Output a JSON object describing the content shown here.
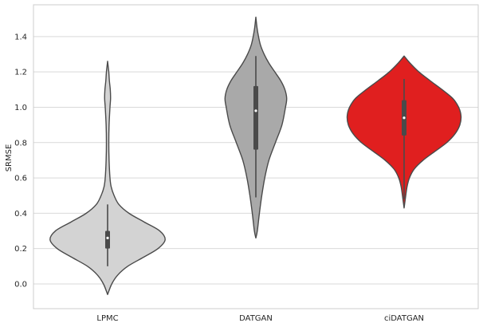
{
  "chart_data": {
    "type": "violin",
    "title": "",
    "xlabel": "",
    "ylabel": "SRMSE",
    "ylim": [
      -0.14,
      1.58
    ],
    "yticks": [
      "0.0",
      "0.2",
      "0.4",
      "0.6",
      "0.8",
      "1.0",
      "1.2",
      "1.4"
    ],
    "grid": "horizontal",
    "categories": [
      "LPMC",
      "DATGAN",
      "ciDATGAN"
    ],
    "colors": [
      "#d3d3d3",
      "#a9a9a9",
      "#e01f1f"
    ],
    "outline_color": "#4a4a4a",
    "violins": [
      {
        "name": "LPMC",
        "min": 0.1,
        "q1": 0.2,
        "median": 0.26,
        "q3": 0.3,
        "max": 0.45,
        "range": [
          -0.06,
          1.26
        ],
        "density": [
          [
            -0.06,
            0.0
          ],
          [
            0.0,
            0.07
          ],
          [
            0.05,
            0.17
          ],
          [
            0.1,
            0.34
          ],
          [
            0.15,
            0.6
          ],
          [
            0.2,
            0.85
          ],
          [
            0.25,
            0.97
          ],
          [
            0.3,
            0.88
          ],
          [
            0.35,
            0.62
          ],
          [
            0.4,
            0.36
          ],
          [
            0.45,
            0.19
          ],
          [
            0.5,
            0.11
          ],
          [
            0.55,
            0.06
          ],
          [
            0.6,
            0.04
          ],
          [
            0.7,
            0.025
          ],
          [
            0.8,
            0.02
          ],
          [
            0.9,
            0.025
          ],
          [
            1.0,
            0.04
          ],
          [
            1.05,
            0.05
          ],
          [
            1.1,
            0.045
          ],
          [
            1.15,
            0.03
          ],
          [
            1.2,
            0.02
          ],
          [
            1.26,
            0.0
          ]
        ]
      },
      {
        "name": "DATGAN",
        "min": 0.49,
        "q1": 0.76,
        "median": 0.98,
        "q3": 1.12,
        "max": 1.29,
        "range": [
          0.26,
          1.51
        ],
        "density": [
          [
            0.26,
            0.0
          ],
          [
            0.3,
            0.025
          ],
          [
            0.4,
            0.06
          ],
          [
            0.5,
            0.1
          ],
          [
            0.6,
            0.15
          ],
          [
            0.7,
            0.22
          ],
          [
            0.8,
            0.33
          ],
          [
            0.9,
            0.44
          ],
          [
            1.0,
            0.5
          ],
          [
            1.05,
            0.52
          ],
          [
            1.1,
            0.49
          ],
          [
            1.15,
            0.42
          ],
          [
            1.2,
            0.32
          ],
          [
            1.25,
            0.22
          ],
          [
            1.3,
            0.14
          ],
          [
            1.35,
            0.08
          ],
          [
            1.4,
            0.045
          ],
          [
            1.45,
            0.02
          ],
          [
            1.51,
            0.0
          ]
        ]
      },
      {
        "name": "ciDATGAN",
        "min": 0.48,
        "q1": 0.84,
        "median": 0.94,
        "q3": 1.04,
        "max": 1.16,
        "range": [
          0.43,
          1.29
        ],
        "density": [
          [
            0.43,
            0.0
          ],
          [
            0.48,
            0.02
          ],
          [
            0.55,
            0.05
          ],
          [
            0.6,
            0.09
          ],
          [
            0.65,
            0.17
          ],
          [
            0.7,
            0.32
          ],
          [
            0.75,
            0.52
          ],
          [
            0.8,
            0.72
          ],
          [
            0.85,
            0.86
          ],
          [
            0.9,
            0.94
          ],
          [
            0.95,
            0.96
          ],
          [
            1.0,
            0.92
          ],
          [
            1.05,
            0.82
          ],
          [
            1.1,
            0.64
          ],
          [
            1.15,
            0.44
          ],
          [
            1.2,
            0.25
          ],
          [
            1.25,
            0.1
          ],
          [
            1.29,
            0.0
          ]
        ]
      }
    ]
  }
}
